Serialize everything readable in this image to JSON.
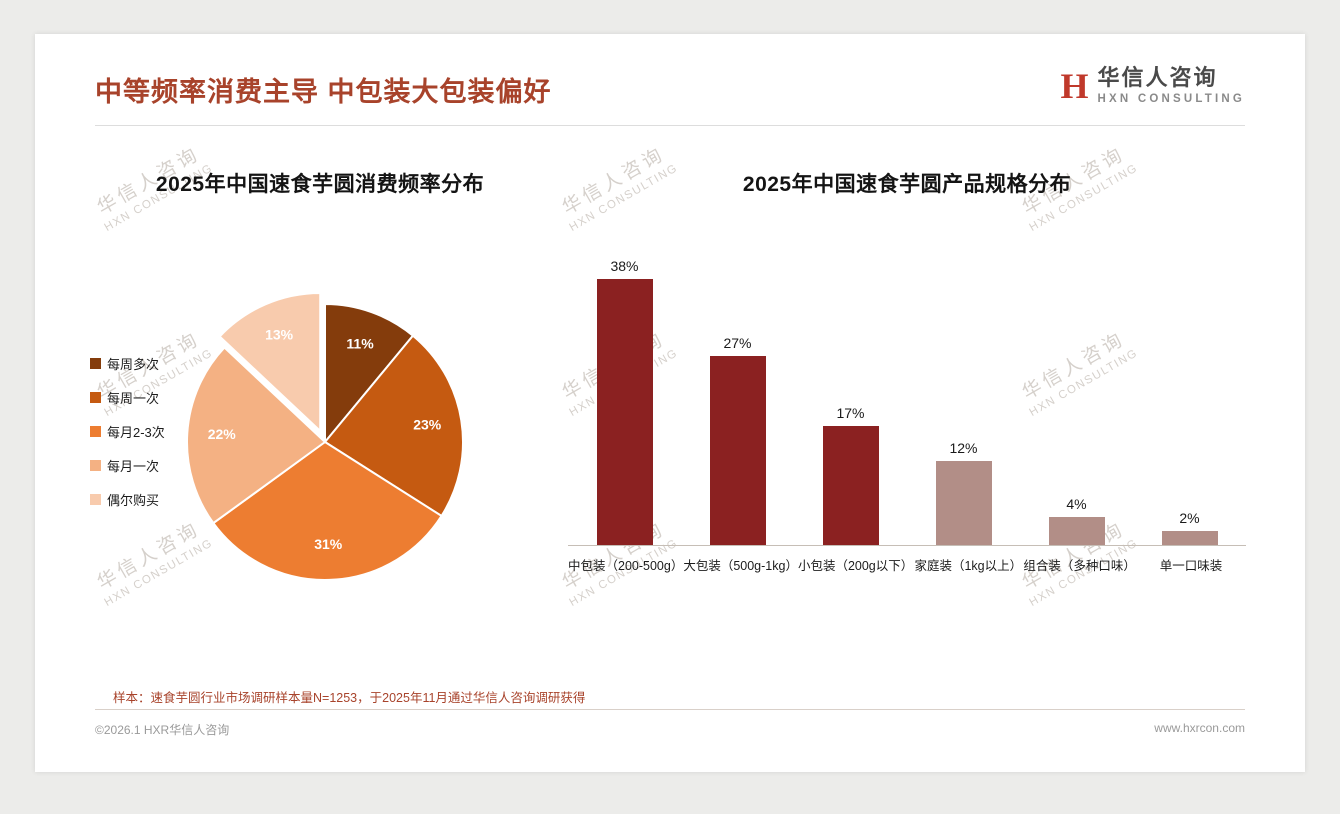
{
  "page": {
    "title": "中等频率消费主导 中包装大包装偏好",
    "logo": {
      "mark": "H",
      "name_cn": "华信人咨询",
      "name_en": "HXN CONSULTING"
    },
    "watermark_cn": "华信人咨询",
    "watermark_en": "HXN CONSULTING",
    "footnote": "样本：速食芋圆行业市场调研样本量N=1253，于2025年11月通过华信人咨询调研获得",
    "footer_left": "©2026.1 HXR华信人咨询",
    "footer_right": "www.hxrcon.com",
    "theme": {
      "title_color": "#A8432B",
      "footnote_color": "#A8432B",
      "brand_red": "#C0392B",
      "bar_dark_red": "#8B2121",
      "bar_mauve": "#B28E87"
    }
  },
  "chart_data": [
    {
      "type": "pie",
      "title": "2025年中国速食芋圆消费频率分布",
      "labels": [
        "每周多次",
        "每周一次",
        "每月2-3次",
        "每月一次",
        "偶尔购买"
      ],
      "values": [
        11,
        23,
        31,
        22,
        13
      ],
      "unit": "%",
      "data_labels": [
        "11%",
        "23%",
        "31%",
        "22%",
        "13%"
      ],
      "colors": [
        "#843C0C",
        "#C55A11",
        "#ED7D31",
        "#F4B183",
        "#F8CBAD"
      ],
      "start_angle_deg": 0,
      "direction": "clockwise",
      "exploded_index": 4,
      "legend_position": "left"
    },
    {
      "type": "bar",
      "title": "2025年中国速食芋圆产品规格分布",
      "categories": [
        "中包装（200-500g）",
        "大包装（500g-1kg）",
        "小包装（200g以下）",
        "家庭装（1kg以上）",
        "组合装（多种口味）",
        "单一口味装"
      ],
      "values": [
        38,
        27,
        17,
        12,
        4,
        2
      ],
      "unit": "%",
      "data_labels": [
        "38%",
        "27%",
        "17%",
        "12%",
        "4%",
        "2%"
      ],
      "bar_colors": [
        "#8B2121",
        "#8B2121",
        "#8B2121",
        "#B28E87",
        "#B28E87",
        "#B28E87"
      ],
      "ylim": [
        0,
        40
      ],
      "grid": false,
      "legend": false
    }
  ]
}
